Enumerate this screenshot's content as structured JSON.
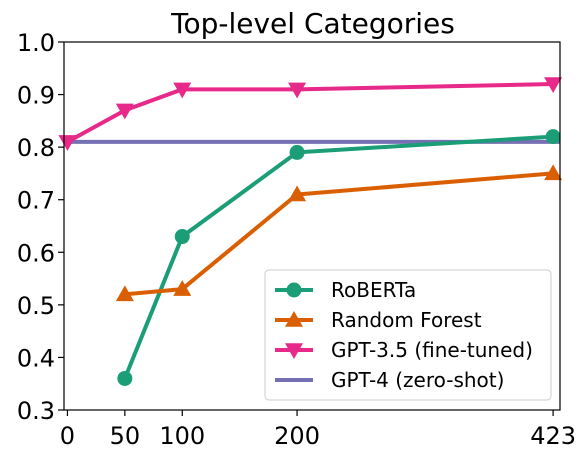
{
  "chart_data": {
    "type": "line",
    "title": "Top-level Categories",
    "xlabel": "",
    "ylabel": "",
    "x_ticks": [
      0,
      50,
      100,
      200,
      423
    ],
    "x_tick_labels": [
      "0",
      "50",
      "100",
      "200",
      "423"
    ],
    "y_ticks": [
      0.3,
      0.4,
      0.5,
      0.6,
      0.7,
      0.8,
      0.9,
      1.0
    ],
    "y_tick_labels": [
      "0.3",
      "0.4",
      "0.5",
      "0.6",
      "0.7",
      "0.8",
      "0.9",
      "1.0"
    ],
    "xlim": [
      -3,
      429
    ],
    "ylim": [
      0.3,
      1.0
    ],
    "grid": false,
    "legend_position": "bottom-right",
    "series": [
      {
        "name": "RoBERTa",
        "color": "#1b9e77",
        "marker": "circle",
        "x": [
          50,
          100,
          200,
          423
        ],
        "y": [
          0.36,
          0.63,
          0.79,
          0.82
        ]
      },
      {
        "name": "Random Forest",
        "color": "#d95f02",
        "marker": "triangle-up",
        "x": [
          50,
          100,
          200,
          423
        ],
        "y": [
          0.52,
          0.53,
          0.71,
          0.75
        ]
      },
      {
        "name": "GPT-3.5 (fine-tuned)",
        "color": "#e7298a",
        "marker": "triangle-down",
        "x": [
          0,
          50,
          100,
          200,
          423
        ],
        "y": [
          0.81,
          0.87,
          0.91,
          0.91,
          0.92
        ]
      },
      {
        "name": "GPT-4 (zero-shot)",
        "color": "#7570b3",
        "marker": "none",
        "x": [
          -3,
          429
        ],
        "y": [
          0.81,
          0.81
        ]
      }
    ]
  }
}
